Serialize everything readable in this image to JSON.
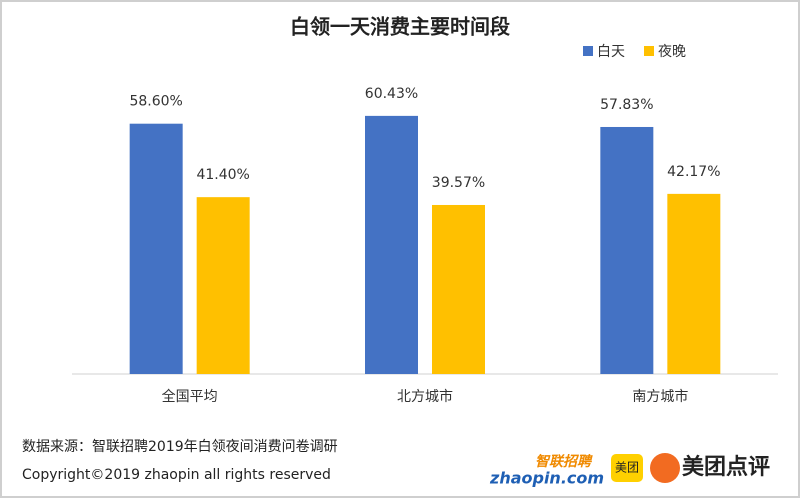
{
  "chart_data": {
    "type": "bar",
    "title": "白领一天消费主要时间段",
    "categories": [
      "全国平均",
      "北方城市",
      "南方城市"
    ],
    "series": [
      {
        "name": "白天",
        "color": "#4472c4",
        "values": [
          58.6,
          60.43,
          57.83
        ],
        "value_labels": [
          "58.60%",
          "60.43%",
          "57.83%"
        ]
      },
      {
        "name": "夜晚",
        "color": "#ffc000",
        "values": [
          41.4,
          39.57,
          42.17
        ],
        "value_labels": [
          "41.40%",
          "39.57%",
          "42.17%"
        ]
      }
    ],
    "ylim": [
      0,
      70
    ],
    "legend": "top-right",
    "grid": false
  },
  "footer": {
    "source": "数据来源：智联招聘2019年白领夜间消费问卷调研",
    "copyright": "Copyright©2019 zhaopin all rights reserved"
  },
  "logos": {
    "zhaopin_cn": "智联招聘",
    "zhaopin_en": "zhaopin.com",
    "meituan": "美团",
    "dianping": "美团点评"
  }
}
